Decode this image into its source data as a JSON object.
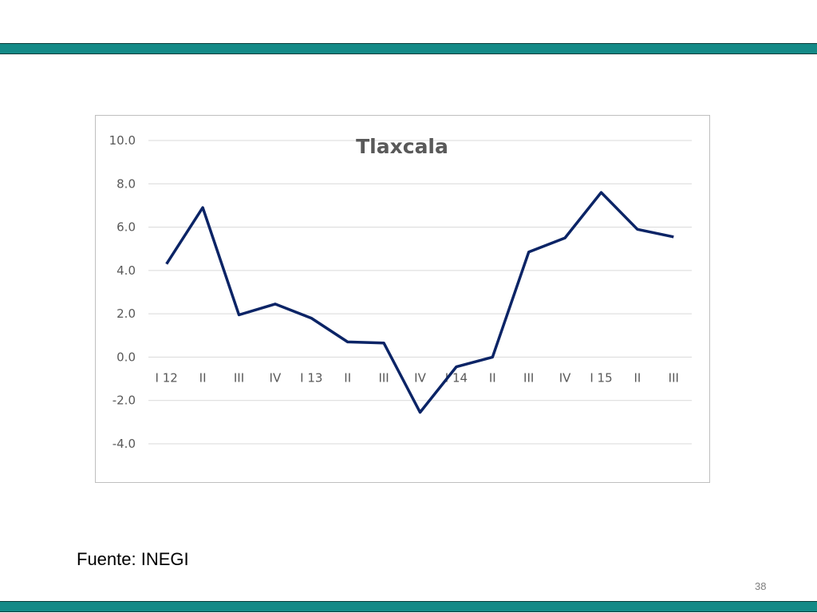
{
  "slide": {
    "source_note": "Fuente: INEGI",
    "page_number": "38",
    "band_color": "#148a87"
  },
  "chart_data": {
    "type": "line",
    "title": "Tlaxcala",
    "xlabel": "",
    "ylabel": "",
    "categories": [
      "I 12",
      "II",
      "III",
      "IV",
      "I 13",
      "II",
      "III",
      "IV",
      "I 14",
      "II",
      "III",
      "IV",
      "I 15",
      "II",
      "III"
    ],
    "series": [
      {
        "color": "#0b2466",
        "values": [
          4.3,
          6.9,
          1.95,
          2.45,
          1.8,
          0.7,
          0.65,
          -2.55,
          -0.45,
          0.0,
          4.85,
          5.5,
          7.6,
          5.9,
          5.55
        ]
      }
    ],
    "ylim": [
      -4.0,
      10.0
    ],
    "yticks": [
      "10.0",
      "8.0",
      "6.0",
      "4.0",
      "2.0",
      "0.0",
      "-2.0",
      "-4.0"
    ],
    "ytick_values": [
      10,
      8,
      6,
      4,
      2,
      0,
      -2,
      -4
    ],
    "grid": true,
    "legend": "none",
    "gridline_color": "#d9d9d9"
  }
}
